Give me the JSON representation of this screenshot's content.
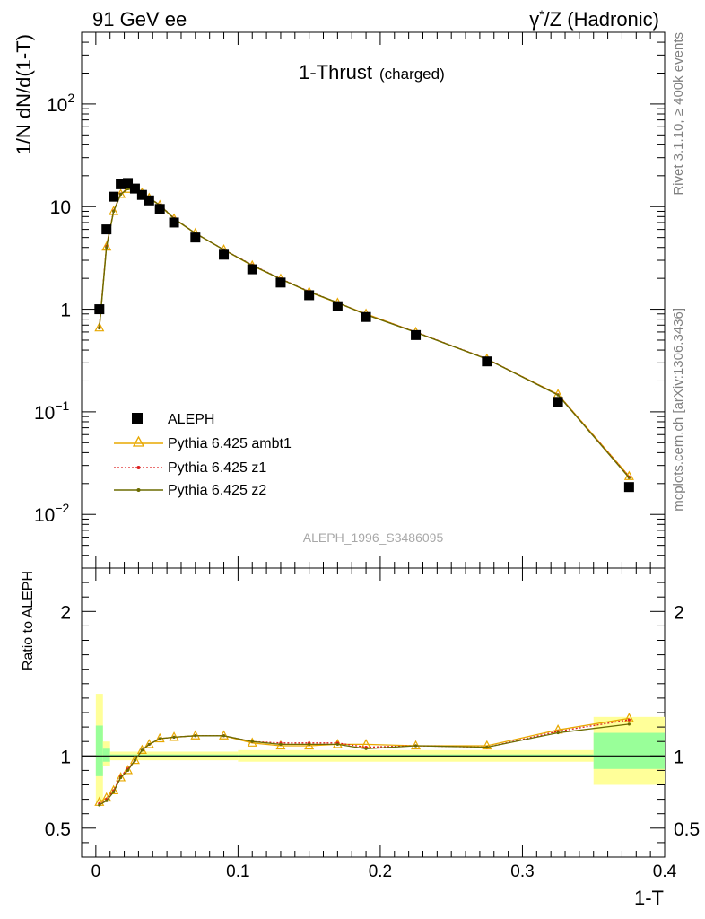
{
  "header": {
    "left": "91 GeV ee",
    "right_gamma": "γ",
    "right_star": "*",
    "right_rest": "/Z (Hadronic)"
  },
  "sidebar": {
    "rivet": "Rivet 3.1.10, ≥ 400k events",
    "mcplots": "mcplots.cern.ch [arXiv:1306.3436]"
  },
  "chart_data": [
    {
      "type": "scatter",
      "title": "1-Thrust",
      "subtitle": "(charged)",
      "xlabel": "1-T",
      "ylabel": "1/N dN/d(1-T)",
      "yscale": "log",
      "xlim": [
        -0.01,
        0.4
      ],
      "ylim": [
        0.003,
        500
      ],
      "analysis": "ALEPH_1996_S3486095",
      "y_ticks": [
        {
          "v": 0.01,
          "b": "10",
          "e": "−2"
        },
        {
          "v": 0.1,
          "b": "10",
          "e": "−1"
        },
        {
          "v": 1,
          "b": "1",
          "e": ""
        },
        {
          "v": 10,
          "b": "10",
          "e": ""
        },
        {
          "v": 100,
          "b": "10",
          "e": "2"
        }
      ],
      "legend_position": "bottom-left",
      "x": [
        0.0025,
        0.0075,
        0.0125,
        0.0175,
        0.0225,
        0.0275,
        0.0325,
        0.0375,
        0.045,
        0.055,
        0.07,
        0.09,
        0.11,
        0.13,
        0.15,
        0.17,
        0.19,
        0.225,
        0.275,
        0.325,
        0.375
      ],
      "x_err": [
        0.0025,
        0.0025,
        0.0025,
        0.0025,
        0.0025,
        0.0025,
        0.0025,
        0.0025,
        0.005,
        0.005,
        0.01,
        0.01,
        0.01,
        0.01,
        0.01,
        0.01,
        0.01,
        0.025,
        0.025,
        0.025,
        0.025
      ],
      "series": [
        {
          "name": "ALEPH",
          "color": "#000000",
          "marker": "square",
          "values": [
            1.0,
            6.0,
            12.5,
            16.5,
            17.0,
            15.0,
            13.0,
            11.5,
            9.5,
            7.0,
            5.0,
            3.4,
            2.45,
            1.82,
            1.37,
            1.07,
            0.84,
            0.56,
            0.31,
            0.125,
            0.0185
          ]
        },
        {
          "name": "Pythia 6.425 ambt1",
          "color": "#e8a800",
          "marker": "triangle",
          "values": [
            0.66,
            4.05,
            9.0,
            13.2,
            14.8,
            14.6,
            13.6,
            12.1,
            10.3,
            7.6,
            5.5,
            3.8,
            2.66,
            1.97,
            1.47,
            1.15,
            0.9,
            0.597,
            0.327,
            0.148,
            0.0235
          ]
        },
        {
          "name": "Pythia 6.425 z1",
          "color": "#dd2020",
          "marker": "dot",
          "dashed": true,
          "values": [
            0.66,
            4.1,
            9.1,
            13.3,
            15.0,
            14.7,
            13.7,
            12.2,
            10.4,
            7.7,
            5.5,
            3.8,
            2.7,
            1.98,
            1.49,
            1.16,
            0.89,
            0.599,
            0.328,
            0.147,
            0.0232
          ]
        },
        {
          "name": "Pythia 6.425 z2",
          "color": "#6b6b00",
          "marker": "dot",
          "values": [
            0.655,
            4.0,
            9.0,
            13.2,
            14.9,
            14.7,
            13.6,
            12.2,
            10.35,
            7.65,
            5.5,
            3.8,
            2.68,
            1.97,
            1.48,
            1.16,
            0.885,
            0.596,
            0.327,
            0.146,
            0.0228
          ]
        }
      ]
    },
    {
      "type": "line",
      "ylabel": "Ratio to ALEPH",
      "xlabel": "1-T",
      "xlim": [
        -0.01,
        0.4
      ],
      "ylim": [
        0.3,
        2.3
      ],
      "y_ticks": [
        0.5,
        1,
        2
      ],
      "x_ticks": [
        0,
        0.1,
        0.2,
        0.3,
        0.4
      ],
      "x_tick_labels": [
        "0",
        "0.1",
        "0.2",
        "0.3",
        "0.4"
      ],
      "reference_line": 1,
      "band_colors": {
        "stat": "#99ff99",
        "total": "#ffff99"
      },
      "bands": [
        {
          "x0": 0.0,
          "x1": 0.005,
          "total": [
            0.68,
            1.43
          ],
          "stat": [
            0.86,
            1.21
          ]
        },
        {
          "x0": 0.005,
          "x1": 0.01,
          "total": [
            0.93,
            1.1
          ],
          "stat": [
            0.96,
            1.05
          ]
        },
        {
          "x0": 0.01,
          "x1": 0.1,
          "total": [
            0.97,
            1.03
          ],
          "stat": [
            0.99,
            1.01
          ]
        },
        {
          "x0": 0.1,
          "x1": 0.35,
          "total": [
            0.96,
            1.04
          ],
          "stat": [
            0.99,
            1.01
          ]
        },
        {
          "x0": 0.35,
          "x1": 0.4,
          "total": [
            0.8,
            1.27
          ],
          "stat": [
            0.91,
            1.16
          ]
        }
      ],
      "series": [
        {
          "name": "Pythia 6.425 ambt1",
          "color": "#e8a800",
          "values": [
            0.68,
            0.71,
            0.76,
            0.85,
            0.9,
            0.97,
            1.04,
            1.08,
            1.12,
            1.13,
            1.14,
            1.14,
            1.09,
            1.07,
            1.07,
            1.08,
            1.08,
            1.07,
            1.07,
            1.18,
            1.26
          ]
        },
        {
          "name": "Pythia 6.425 z1",
          "color": "#dd2020",
          "values": [
            0.67,
            0.7,
            0.76,
            0.86,
            0.91,
            0.97,
            1.04,
            1.08,
            1.12,
            1.13,
            1.14,
            1.14,
            1.1,
            1.09,
            1.09,
            1.09,
            1.06,
            1.07,
            1.06,
            1.17,
            1.25
          ]
        },
        {
          "name": "Pythia 6.425 z2",
          "color": "#6b6b00",
          "values": [
            0.66,
            0.69,
            0.75,
            0.85,
            0.9,
            0.97,
            1.04,
            1.08,
            1.12,
            1.13,
            1.14,
            1.14,
            1.1,
            1.08,
            1.08,
            1.08,
            1.05,
            1.07,
            1.06,
            1.16,
            1.22
          ]
        }
      ]
    }
  ]
}
